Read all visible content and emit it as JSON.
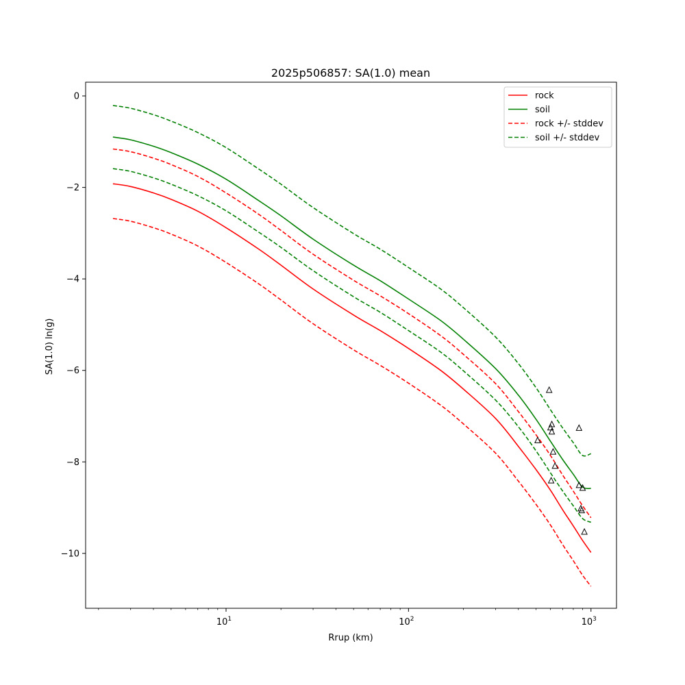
{
  "chart_data": {
    "type": "line",
    "title": "2025p506857: SA(1.0) mean",
    "xlabel": "Rrup (km)",
    "ylabel": "SA(1.0) ln(g)",
    "xscale": "log",
    "xlim": [
      1.7,
      1380
    ],
    "ylim": [
      -11.2,
      0.3
    ],
    "grid": false,
    "legend_position": "top-right",
    "x_ticks": [
      {
        "value": 10,
        "base": "10",
        "exp": "1"
      },
      {
        "value": 100,
        "base": "10",
        "exp": "2"
      },
      {
        "value": 1000,
        "base": "10",
        "exp": "3"
      }
    ],
    "y_ticks": [
      0,
      -2,
      -4,
      -6,
      -8,
      -10
    ],
    "y_tick_labels": [
      "0",
      "−2",
      "−4",
      "−6",
      "−8",
      "−10"
    ],
    "x": [
      2.4,
      3,
      4,
      5,
      7,
      10,
      15,
      20,
      30,
      50,
      70,
      100,
      150,
      200,
      300,
      400,
      500,
      600,
      700,
      800,
      900,
      1000
    ],
    "series": [
      {
        "name": "rock",
        "color": "#ff0000",
        "dash": false,
        "values": [
          -1.92,
          -1.98,
          -2.12,
          -2.26,
          -2.52,
          -2.88,
          -3.34,
          -3.7,
          -4.22,
          -4.79,
          -5.13,
          -5.52,
          -6.0,
          -6.41,
          -7.05,
          -7.66,
          -8.17,
          -8.62,
          -9.05,
          -9.4,
          -9.72,
          -9.98
        ]
      },
      {
        "name": "soil",
        "color": "#008000",
        "dash": false,
        "values": [
          -0.9,
          -0.96,
          -1.1,
          -1.24,
          -1.49,
          -1.82,
          -2.28,
          -2.62,
          -3.13,
          -3.7,
          -4.04,
          -4.44,
          -4.91,
          -5.32,
          -5.96,
          -6.54,
          -7.07,
          -7.55,
          -7.95,
          -8.27,
          -8.55,
          -8.58
        ]
      },
      {
        "name": "rock +/- stddev",
        "color": "#ff0000",
        "dash": true,
        "values": [
          -1.16,
          -1.22,
          -1.36,
          -1.5,
          -1.76,
          -2.12,
          -2.58,
          -2.94,
          -3.46,
          -4.03,
          -4.37,
          -4.76,
          -5.24,
          -5.65,
          -6.29,
          -6.9,
          -7.41,
          -7.86,
          -8.29,
          -8.64,
          -8.96,
          -9.22
        ]
      },
      {
        "name": "rock +/- stddev (lower)",
        "color": "#ff0000",
        "dash": true,
        "values": [
          -2.68,
          -2.74,
          -2.88,
          -3.02,
          -3.28,
          -3.64,
          -4.1,
          -4.46,
          -4.98,
          -5.55,
          -5.89,
          -6.28,
          -6.76,
          -7.17,
          -7.81,
          -8.42,
          -8.93,
          -9.38,
          -9.81,
          -10.16,
          -10.48,
          -10.72
        ]
      },
      {
        "name": "soil +/- stddev",
        "color": "#008000",
        "dash": true,
        "values": [
          -0.21,
          -0.27,
          -0.41,
          -0.55,
          -0.8,
          -1.13,
          -1.59,
          -1.93,
          -2.44,
          -3.01,
          -3.35,
          -3.75,
          -4.22,
          -4.63,
          -5.27,
          -5.85,
          -6.38,
          -6.86,
          -7.26,
          -7.58,
          -7.86,
          -7.82
        ]
      },
      {
        "name": "soil +/- stddev (lower)",
        "color": "#008000",
        "dash": true,
        "values": [
          -1.59,
          -1.65,
          -1.79,
          -1.93,
          -2.18,
          -2.51,
          -2.97,
          -3.31,
          -3.82,
          -4.39,
          -4.73,
          -5.13,
          -5.6,
          -6.01,
          -6.65,
          -7.23,
          -7.76,
          -8.24,
          -8.64,
          -8.96,
          -9.24,
          -9.32
        ]
      }
    ],
    "observations": [
      {
        "x": 510,
        "y": -7.53
      },
      {
        "x": 590,
        "y": -6.43
      },
      {
        "x": 600,
        "y": -7.25
      },
      {
        "x": 610,
        "y": -7.18
      },
      {
        "x": 610,
        "y": -7.34
      },
      {
        "x": 605,
        "y": -8.41
      },
      {
        "x": 620,
        "y": -7.78
      },
      {
        "x": 635,
        "y": -8.09
      },
      {
        "x": 860,
        "y": -7.26
      },
      {
        "x": 860,
        "y": -8.51
      },
      {
        "x": 880,
        "y": -9.02
      },
      {
        "x": 900,
        "y": -8.57
      },
      {
        "x": 890,
        "y": -9.06
      },
      {
        "x": 920,
        "y": -9.53
      }
    ],
    "legend": [
      {
        "label": "rock",
        "color": "#ff0000",
        "dash": false
      },
      {
        "label": "soil",
        "color": "#008000",
        "dash": false
      },
      {
        "label": "rock +/- stddev",
        "color": "#ff0000",
        "dash": true
      },
      {
        "label": "soil +/- stddev",
        "color": "#008000",
        "dash": true
      }
    ]
  }
}
